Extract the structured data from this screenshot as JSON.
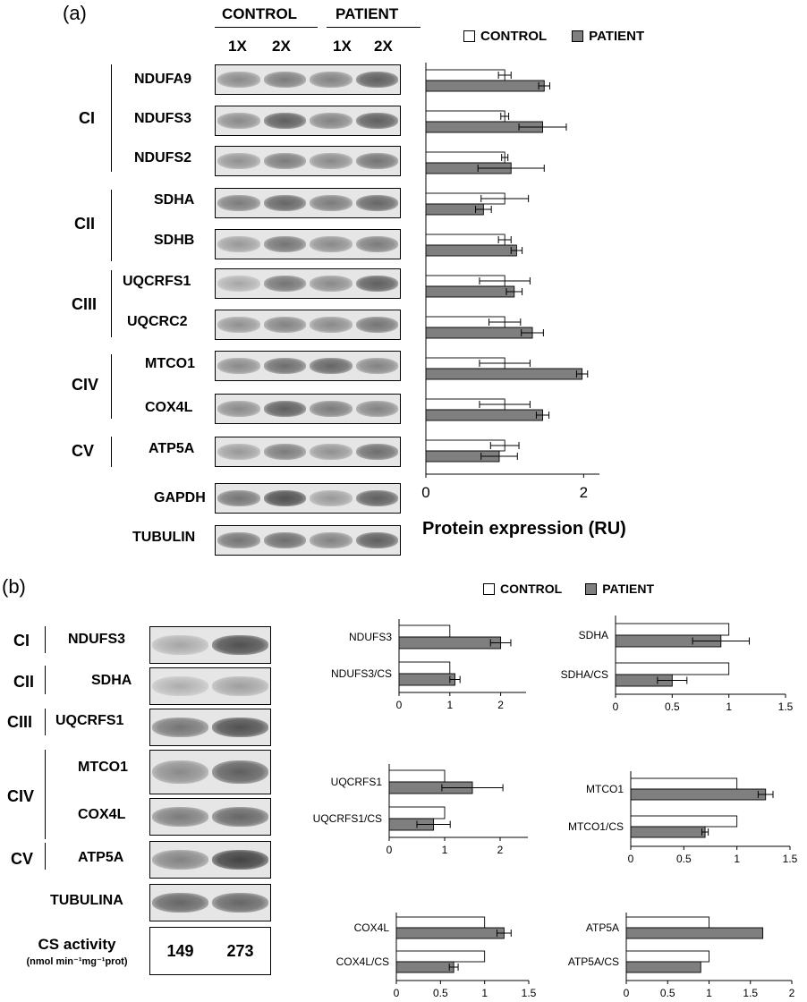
{
  "panel_a": {
    "letter": "(a)",
    "headers": {
      "control": "CONTROL",
      "patient": "PATIENT",
      "lanes": [
        "1X",
        "2X",
        "1X",
        "2X"
      ]
    },
    "complexes": [
      {
        "name": "CI",
        "proteins": [
          "NDUFA9",
          "NDUFS3",
          "NDUFS2"
        ]
      },
      {
        "name": "CII",
        "proteins": [
          "SDHA",
          "SDHB"
        ]
      },
      {
        "name": "CIII",
        "proteins": [
          "UQCRFS1",
          "UQCRC2"
        ]
      },
      {
        "name": "CIV",
        "proteins": [
          "MTCO1",
          "COX4L"
        ]
      },
      {
        "name": "CV",
        "proteins": [
          "ATP5A"
        ]
      }
    ],
    "loading_controls": [
      "GAPDH",
      "TUBULIN"
    ],
    "legend": {
      "control": "CONTROL",
      "patient": "PATIENT"
    }
  },
  "panel_b": {
    "letter": "(b)",
    "complexes": [
      {
        "name": "CI",
        "protein": "NDUFS3"
      },
      {
        "name": "CII",
        "protein": "SDHA"
      },
      {
        "name": "CIII",
        "protein": "UQCRFS1"
      },
      {
        "name": "CIV",
        "protein": "MTCO1"
      },
      {
        "name": "",
        "protein": "COX4L"
      },
      {
        "name": "CV",
        "protein": "ATP5A"
      }
    ],
    "loading_control": "TUBULINA",
    "cs": {
      "label": "CS activity",
      "unit": "(nmol min⁻¹mg⁻¹prot)",
      "control": "149",
      "patient": "273"
    },
    "legend": {
      "control": "CONTROL",
      "patient": "PATIENT"
    }
  },
  "colors": {
    "control": "#ffffff",
    "patient": "#7f7f7f",
    "outline": "#000000"
  },
  "chart_data": [
    {
      "type": "bar",
      "orientation": "horizontal",
      "categories": [
        "NDUFA9",
        "NDUFS3",
        "NDUFS2",
        "SDHA",
        "SDHB",
        "UQCRFS1",
        "UQCRC2",
        "MTCO1",
        "COX4L",
        "ATP5A"
      ],
      "series": [
        {
          "name": "CONTROL",
          "values": [
            1.0,
            1.0,
            1.0,
            1.0,
            1.0,
            1.0,
            1.0,
            1.0,
            1.0,
            1.0
          ],
          "errors": [
            0.08,
            0.05,
            0.04,
            0.3,
            0.08,
            0.32,
            0.2,
            0.32,
            0.32,
            0.18
          ]
        },
        {
          "name": "PATIENT",
          "values": [
            1.5,
            1.48,
            1.08,
            0.73,
            1.15,
            1.12,
            1.35,
            1.98,
            1.48,
            0.93
          ],
          "errors": [
            0.07,
            0.3,
            0.42,
            0.1,
            0.07,
            0.1,
            0.14,
            0.07,
            0.08,
            0.23
          ]
        }
      ],
      "xticks": [
        0,
        2
      ],
      "xlim": [
        0,
        2.2
      ],
      "xlabel": "Protein expression (RU)",
      "legend_position": "top"
    },
    {
      "type": "bar",
      "orientation": "horizontal",
      "categories": [
        "NDUFS3",
        "NDUFS3/CS"
      ],
      "series": [
        {
          "name": "CONTROL",
          "values": [
            1.0,
            1.0
          ],
          "errors": [
            0,
            0
          ]
        },
        {
          "name": "PATIENT",
          "values": [
            2.0,
            1.1
          ],
          "errors": [
            0.2,
            0.1
          ]
        }
      ],
      "xticks": [
        0,
        1,
        2
      ],
      "xlim": [
        0,
        2.5
      ],
      "xlabel": ""
    },
    {
      "type": "bar",
      "orientation": "horizontal",
      "categories": [
        "SDHA",
        "SDHA/CS"
      ],
      "series": [
        {
          "name": "CONTROL",
          "values": [
            1.0,
            1.0
          ],
          "errors": [
            0,
            0
          ]
        },
        {
          "name": "PATIENT",
          "values": [
            0.93,
            0.5
          ],
          "errors": [
            0.25,
            0.13
          ]
        }
      ],
      "xticks": [
        0,
        0.5,
        1,
        1.5
      ],
      "xlim": [
        0,
        1.5
      ],
      "xlabel": ""
    },
    {
      "type": "bar",
      "orientation": "horizontal",
      "categories": [
        "UQCRFS1",
        "UQCRFS1/CS"
      ],
      "series": [
        {
          "name": "CONTROL",
          "values": [
            1.0,
            1.0
          ],
          "errors": [
            0,
            0
          ]
        },
        {
          "name": "PATIENT",
          "values": [
            1.5,
            0.8
          ],
          "errors": [
            0.55,
            0.3
          ]
        }
      ],
      "xticks": [
        0,
        1,
        2
      ],
      "xlim": [
        0,
        2.5
      ],
      "xlabel": ""
    },
    {
      "type": "bar",
      "orientation": "horizontal",
      "categories": [
        "MTCO1",
        "MTCO1/CS"
      ],
      "series": [
        {
          "name": "CONTROL",
          "values": [
            1.0,
            1.0
          ],
          "errors": [
            0,
            0
          ]
        },
        {
          "name": "PATIENT",
          "values": [
            1.27,
            0.7
          ],
          "errors": [
            0.07,
            0.03
          ]
        }
      ],
      "xticks": [
        0,
        0.5,
        1,
        1.5
      ],
      "xlim": [
        0,
        1.5
      ],
      "xlabel": ""
    },
    {
      "type": "bar",
      "orientation": "horizontal",
      "categories": [
        "COX4L",
        "COX4L/CS"
      ],
      "series": [
        {
          "name": "CONTROL",
          "values": [
            1.0,
            1.0
          ],
          "errors": [
            0,
            0
          ]
        },
        {
          "name": "PATIENT",
          "values": [
            1.22,
            0.65
          ],
          "errors": [
            0.08,
            0.05
          ]
        }
      ],
      "xticks": [
        0,
        0.5,
        1,
        1.5
      ],
      "xlim": [
        0,
        1.5
      ],
      "xlabel": ""
    },
    {
      "type": "bar",
      "orientation": "horizontal",
      "categories": [
        "ATP5A",
        "ATP5A/CS"
      ],
      "series": [
        {
          "name": "CONTROL",
          "values": [
            1.0,
            1.0
          ],
          "errors": [
            0,
            0
          ]
        },
        {
          "name": "PATIENT",
          "values": [
            1.65,
            0.9
          ],
          "errors": [
            0,
            0
          ]
        }
      ],
      "xticks": [
        0,
        0.5,
        1,
        1.5,
        2
      ],
      "xlim": [
        0,
        2
      ],
      "xlabel": ""
    }
  ]
}
